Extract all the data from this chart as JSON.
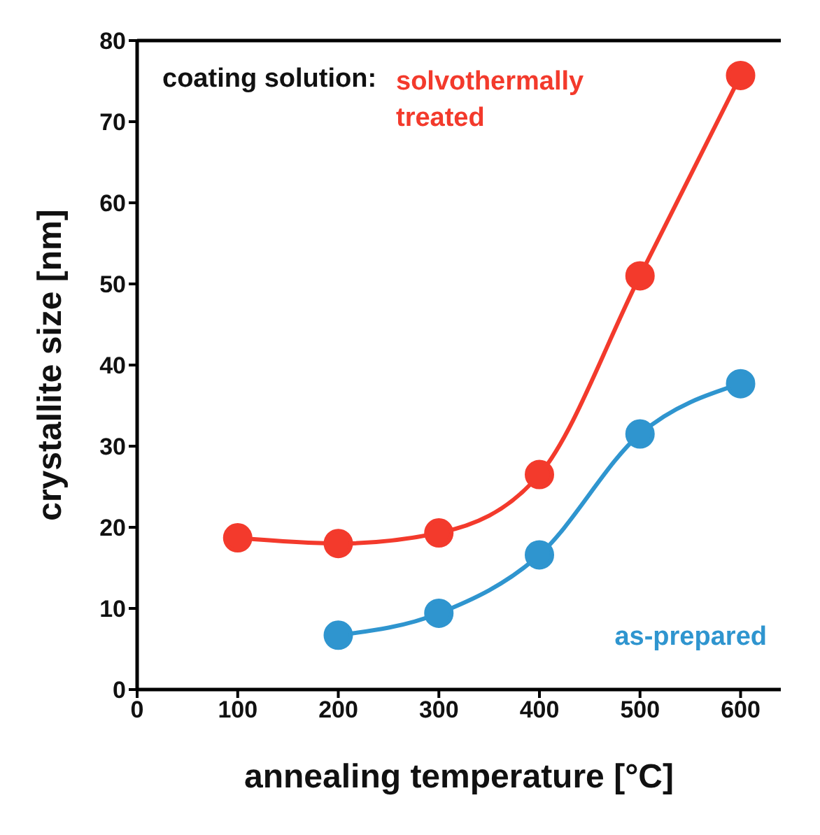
{
  "chart_data": {
    "type": "line",
    "xlabel": "annealing temperature [°C]",
    "ylabel": "crystallite size [nm]",
    "xlim": [
      0,
      640
    ],
    "xticks": [
      0,
      100,
      200,
      300,
      400,
      500,
      600
    ],
    "ylim": [
      0,
      80
    ],
    "yticks": [
      0,
      10,
      20,
      30,
      40,
      50,
      60,
      70,
      80
    ],
    "marker": "circle",
    "line_style": "solid",
    "annotations": [
      "coating solution:"
    ],
    "series": [
      {
        "name": "solvothermally treated",
        "color": "#f33a2c",
        "x": [
          100,
          200,
          300,
          400,
          500,
          600
        ],
        "values": [
          18.7,
          18,
          19.3,
          26.5,
          51,
          75.7
        ]
      },
      {
        "name": "as-prepared",
        "color": "#2f95cf",
        "x": [
          200,
          300,
          400,
          500,
          600
        ],
        "values": [
          6.7,
          9.4,
          16.6,
          31.5,
          37.7
        ]
      }
    ]
  }
}
